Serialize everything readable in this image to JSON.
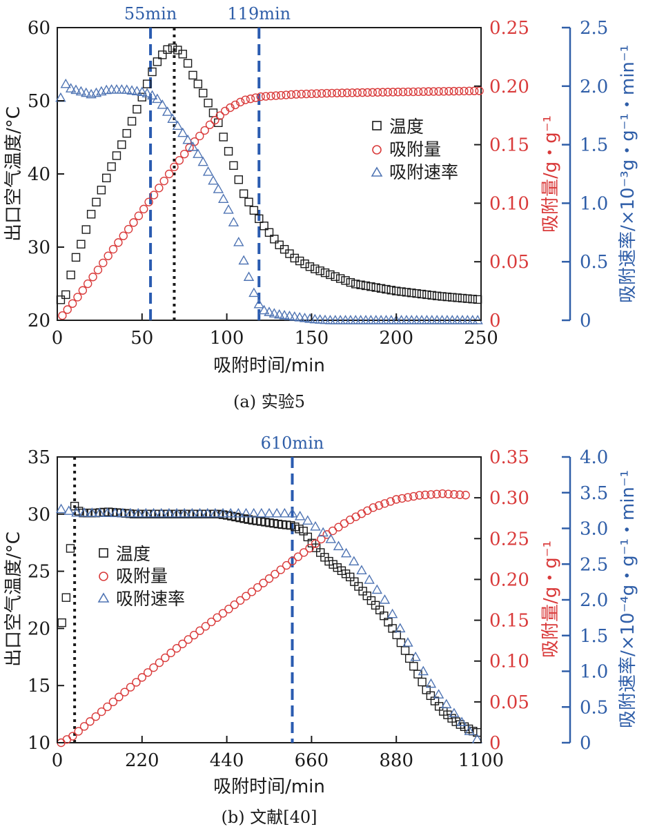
{
  "colors": {
    "black": "#1a1a1a",
    "red": "#d93a3a",
    "blue": "#2f5ea8",
    "blue_dash": "#2a5bb0",
    "blue_triangle": "#4f74b3"
  },
  "icons": {
    "square": "square-marker-icon",
    "circle": "circle-marker-icon",
    "triangle": "triangle-marker-icon"
  },
  "chart_data": [
    {
      "id": "a",
      "type": "scatter",
      "caption": "(a) 实验5",
      "xlabel": "吸附时间/min",
      "ylabel_left": "出口空气温度/°C",
      "ylabel_right1": "吸附量/g・g⁻¹",
      "ylabel_right2": "吸附速率/×10⁻³g・g⁻¹・min⁻¹",
      "xlim": [
        0,
        250
      ],
      "ylim_left": [
        20,
        60
      ],
      "ylim_right1": [
        0,
        0.25
      ],
      "ylim_right2": [
        0,
        2.5
      ],
      "xticks": [
        "0",
        "50",
        "100",
        "150",
        "200",
        "250"
      ],
      "yticks_left": [
        "20",
        "30",
        "40",
        "50",
        "60"
      ],
      "yticks_right1": [
        "0",
        "0.05",
        "0.10",
        "0.15",
        "0.20",
        "0.25"
      ],
      "yticks_right2": [
        "0",
        "0.5",
        "1.0",
        "1.5",
        "2.0",
        "2.5"
      ],
      "legend": [
        "温度",
        "吸附量",
        "吸附速率"
      ],
      "vlines": [
        {
          "x": 55,
          "label": "55min",
          "style": "dashed-blue"
        },
        {
          "x": 69,
          "label": "",
          "style": "dotted-black"
        },
        {
          "x": 119,
          "label": "119min",
          "style": "dashed-blue"
        }
      ],
      "series": [
        {
          "name": "温度",
          "marker": "square",
          "axis": "left",
          "step": 3,
          "anchors": [
            [
              2,
              22.8
            ],
            [
              5,
              23.5
            ],
            [
              10,
              28
            ],
            [
              15,
              31
            ],
            [
              20,
              34.5
            ],
            [
              30,
              40
            ],
            [
              40,
              45
            ],
            [
              50,
              50.5
            ],
            [
              55,
              53.5
            ],
            [
              60,
              55.8
            ],
            [
              65,
              57
            ],
            [
              69,
              57.3
            ],
            [
              75,
              56.2
            ],
            [
              80,
              53.5
            ],
            [
              85,
              51.5
            ],
            [
              95,
              47
            ],
            [
              105,
              40.5
            ],
            [
              110,
              37.3
            ],
            [
              120,
              33.5
            ],
            [
              130,
              30.5
            ],
            [
              140,
              28.5
            ],
            [
              150,
              27.2
            ],
            [
              175,
              25
            ],
            [
              200,
              24
            ],
            [
              225,
              23.3
            ],
            [
              250,
              22.8
            ]
          ]
        },
        {
          "name": "吸附量",
          "marker": "circle",
          "axis": "right1",
          "step": 3,
          "anchors": [
            [
              3,
              0.004
            ],
            [
              10,
              0.016
            ],
            [
              20,
              0.035
            ],
            [
              30,
              0.055
            ],
            [
              40,
              0.074
            ],
            [
              50,
              0.093
            ],
            [
              60,
              0.113
            ],
            [
              70,
              0.133
            ],
            [
              80,
              0.151
            ],
            [
              90,
              0.167
            ],
            [
              100,
              0.18
            ],
            [
              110,
              0.188
            ],
            [
              120,
              0.191
            ],
            [
              140,
              0.193
            ],
            [
              160,
              0.194
            ],
            [
              200,
              0.195
            ],
            [
              250,
              0.196
            ]
          ]
        },
        {
          "name": "吸附速率",
          "marker": "triangle",
          "axis": "right2",
          "step": 3,
          "anchors": [
            [
              2,
              1.9
            ],
            [
              4,
              2.03
            ],
            [
              8,
              1.98
            ],
            [
              15,
              1.95
            ],
            [
              20,
              1.93
            ],
            [
              25,
              1.95
            ],
            [
              30,
              1.97
            ],
            [
              40,
              1.97
            ],
            [
              50,
              1.95
            ],
            [
              55,
              1.93
            ],
            [
              60,
              1.88
            ],
            [
              65,
              1.78
            ],
            [
              70,
              1.68
            ],
            [
              75,
              1.58
            ],
            [
              80,
              1.48
            ],
            [
              85,
              1.38
            ],
            [
              90,
              1.24
            ],
            [
              95,
              1.12
            ],
            [
              100,
              0.98
            ],
            [
              105,
              0.8
            ],
            [
              108,
              0.6
            ],
            [
              112,
              0.42
            ],
            [
              115,
              0.27
            ],
            [
              118,
              0.16
            ],
            [
              121,
              0.09
            ],
            [
              125,
              0.07
            ],
            [
              130,
              0.05
            ],
            [
              140,
              0.03
            ],
            [
              150,
              0.01
            ],
            [
              160,
              0.0
            ],
            [
              250,
              0.0
            ]
          ]
        }
      ]
    },
    {
      "id": "b",
      "type": "scatter",
      "caption": "(b) 文献[40]",
      "xlabel": "吸附时间/min",
      "ylabel_left": "出口空气温度/°C",
      "ylabel_right1": "吸附量/g・g⁻¹",
      "ylabel_right2": "吸附速率/×10⁻⁴g・g⁻¹・min⁻¹",
      "xlim": [
        0,
        1100
      ],
      "ylim_left": [
        10,
        35
      ],
      "ylim_right1": [
        0,
        0.35
      ],
      "ylim_right2": [
        0,
        4.0
      ],
      "xticks": [
        "0",
        "220",
        "440",
        "660",
        "880",
        "1100"
      ],
      "yticks_left": [
        "10",
        "15",
        "20",
        "25",
        "30",
        "35"
      ],
      "yticks_right1": [
        "0",
        "0.05",
        "0.10",
        "0.15",
        "0.20",
        "0.25",
        "0.30",
        "0.35"
      ],
      "yticks_right2": [
        "0",
        "0.5",
        "1.0",
        "1.5",
        "2.0",
        "2.5",
        "3.0",
        "3.5",
        "4.0"
      ],
      "legend": [
        "温度",
        "吸附量",
        "吸附速率"
      ],
      "vlines": [
        {
          "x": 45,
          "label": "",
          "style": "dotted-black"
        },
        {
          "x": 610,
          "label": "610min",
          "style": "dashed-blue"
        }
      ],
      "series": [
        {
          "name": "温度",
          "marker": "square",
          "axis": "left",
          "step": 11,
          "anchors": [
            [
              12,
              20.5
            ],
            [
              28,
              23.7
            ],
            [
              40,
              30.3
            ],
            [
              45,
              30.7
            ],
            [
              60,
              30.1
            ],
            [
              100,
              30.1
            ],
            [
              130,
              30.2
            ],
            [
              200,
              30.0
            ],
            [
              300,
              30.0
            ],
            [
              420,
              30.0
            ],
            [
              440,
              29.9
            ],
            [
              500,
              29.5
            ],
            [
              580,
              29.1
            ],
            [
              610,
              29.0
            ],
            [
              640,
              28.5
            ],
            [
              660,
              27.5
            ],
            [
              700,
              26.0
            ],
            [
              760,
              24.5
            ],
            [
              800,
              23.0
            ],
            [
              840,
              21.5
            ],
            [
              880,
              19.5
            ],
            [
              920,
              17.0
            ],
            [
              960,
              14.5
            ],
            [
              1000,
              12.8
            ],
            [
              1040,
              11.7
            ],
            [
              1080,
              11.0
            ],
            [
              1090,
              10.9
            ]
          ]
        },
        {
          "name": "吸附量",
          "marker": "circle",
          "axis": "right1",
          "step": 15,
          "anchors": [
            [
              10,
              0.0
            ],
            [
              40,
              0.008
            ],
            [
              100,
              0.032
            ],
            [
              200,
              0.072
            ],
            [
              300,
              0.112
            ],
            [
              400,
              0.148
            ],
            [
              500,
              0.183
            ],
            [
              600,
              0.219
            ],
            [
              660,
              0.24
            ],
            [
              700,
              0.255
            ],
            [
              760,
              0.273
            ],
            [
              820,
              0.288
            ],
            [
              880,
              0.298
            ],
            [
              940,
              0.303
            ],
            [
              1000,
              0.305
            ],
            [
              1070,
              0.303
            ]
          ]
        },
        {
          "name": "吸附速率",
          "marker": "triangle",
          "axis": "right2",
          "step": 20,
          "anchors": [
            [
              10,
              3.27
            ],
            [
              50,
              3.22
            ],
            [
              200,
              3.21
            ],
            [
              600,
              3.21
            ],
            [
              610,
              3.21
            ],
            [
              640,
              3.15
            ],
            [
              700,
              2.9
            ],
            [
              760,
              2.6
            ],
            [
              800,
              2.35
            ],
            [
              850,
              2.0
            ],
            [
              880,
              1.7
            ],
            [
              920,
              1.3
            ],
            [
              960,
              0.9
            ],
            [
              1000,
              0.6
            ],
            [
              1040,
              0.35
            ],
            [
              1080,
              0.1
            ],
            [
              1090,
              0.05
            ]
          ]
        }
      ]
    }
  ]
}
